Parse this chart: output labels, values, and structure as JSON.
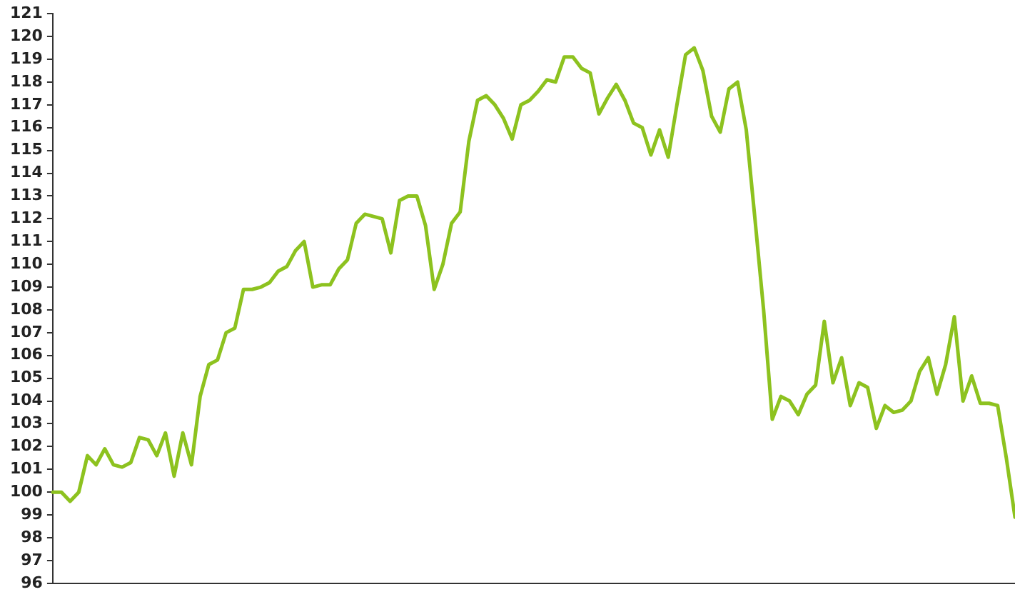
{
  "chart_data": {
    "type": "line",
    "categories": [
      null,
      null,
      null,
      null,
      null,
      null,
      null,
      null,
      null,
      null,
      null,
      null,
      null,
      null,
      null,
      null,
      null,
      null,
      null,
      null,
      null,
      null,
      null,
      null,
      null,
      null,
      null,
      null,
      null,
      null,
      null,
      null,
      null,
      null,
      null,
      null,
      null,
      null,
      null,
      null,
      null,
      null,
      null,
      null,
      null,
      null,
      null,
      null,
      null,
      null,
      null,
      null,
      null,
      null,
      null,
      null,
      null,
      null,
      null,
      null,
      null,
      null,
      null,
      null,
      null,
      null,
      null,
      null,
      null,
      null,
      null,
      null,
      null,
      null,
      null,
      null,
      null,
      null,
      null,
      null,
      null,
      null,
      null,
      null,
      null,
      null,
      null,
      null,
      null,
      null,
      null,
      null,
      null,
      null,
      null,
      null,
      null,
      null,
      null,
      null,
      null,
      null,
      null,
      null,
      null,
      null,
      null,
      null,
      null,
      null,
      null,
      null
    ],
    "series": [
      {
        "color": "#8dc21f",
        "values": [
          100.0,
          100.0,
          99.6,
          100.0,
          101.6,
          101.2,
          101.9,
          101.2,
          101.1,
          101.3,
          102.4,
          102.3,
          101.6,
          102.6,
          100.7,
          102.6,
          101.2,
          104.2,
          105.6,
          105.8,
          107.0,
          107.2,
          108.9,
          108.9,
          109.0,
          109.2,
          109.7,
          109.9,
          110.6,
          111.0,
          109.0,
          109.1,
          109.1,
          109.8,
          110.2,
          111.8,
          112.2,
          112.1,
          112.0,
          110.5,
          112.8,
          113.0,
          113.0,
          111.7,
          108.9,
          110.0,
          111.8,
          112.3,
          115.4,
          117.2,
          117.4,
          117.0,
          116.4,
          115.5,
          117.0,
          117.2,
          117.6,
          118.1,
          118.0,
          119.1,
          119.1,
          118.6,
          118.4,
          116.6,
          117.3,
          117.9,
          117.2,
          116.2,
          116.0,
          114.8,
          115.9,
          114.7,
          117.0,
          119.2,
          119.5,
          118.5,
          116.5,
          115.8,
          117.7,
          118.0,
          115.9,
          112.0,
          108.0,
          103.2,
          104.2,
          104.0,
          103.4,
          104.3,
          104.7,
          107.5,
          104.8,
          105.9,
          103.8,
          104.8,
          104.6,
          102.8,
          103.8,
          103.5,
          103.6,
          104.0,
          105.3,
          105.9,
          104.3,
          105.6,
          107.7,
          104.0,
          105.1,
          103.9,
          103.9,
          103.8,
          101.5,
          98.9
        ]
      }
    ],
    "ylim": [
      96,
      121
    ],
    "yticks": [
      96,
      97,
      98,
      99,
      100,
      101,
      102,
      103,
      104,
      105,
      106,
      107,
      108,
      109,
      110,
      111,
      112,
      113,
      114,
      115,
      116,
      117,
      118,
      119,
      120,
      121
    ],
    "grid": false,
    "legend": false,
    "marker": "none",
    "line_style": "solid",
    "tick_labels": "y"
  }
}
